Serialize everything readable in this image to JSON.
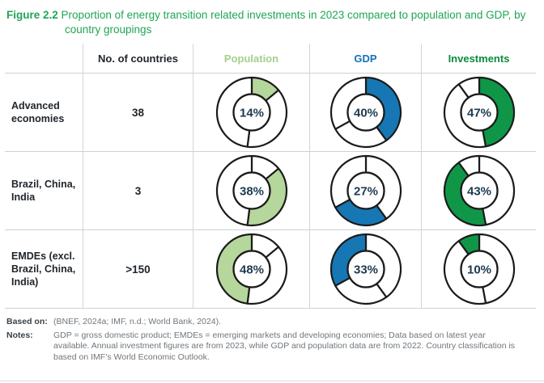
{
  "title": {
    "figure_label": "Figure 2.2",
    "text": "Proportion of energy transition related investments in 2023 compared to population and GDP, by country groupings"
  },
  "colors": {
    "title_green": "#1fa654",
    "stroke": "#1b1b1b",
    "pct_text": "#1e3a50",
    "fills": [
      "#b5d79c",
      "#1677b4",
      "#0f9747"
    ],
    "header_colors": [
      "#20262c",
      "#a3cf8b",
      "#1472b6",
      "#0d8a3e"
    ]
  },
  "table": {
    "col_headers": [
      "No. of countries",
      "Population",
      "GDP",
      "Investments"
    ],
    "rows": [
      {
        "label": "Advanced economies",
        "countries": "38",
        "population": "14%",
        "gdp": "40%",
        "investments": "47%"
      },
      {
        "label": "Brazil, China, India",
        "countries": "3",
        "population": "38%",
        "gdp": "27%",
        "investments": "43%"
      },
      {
        "label": "EMDEs (excl. Brazil, China, India)",
        "countries": ">150",
        "population": "48%",
        "gdp": "33%",
        "investments": "10%"
      }
    ]
  },
  "chart_data": [
    {
      "type": "pie",
      "title": "Population",
      "categories": [
        "Advanced economies",
        "Brazil, China, India",
        "EMDEs (excl. Brazil, China, India)"
      ],
      "values": [
        14,
        38,
        48
      ],
      "unit": "%",
      "style": "donut, single highlighted segment per row, others white with black outline"
    },
    {
      "type": "pie",
      "title": "GDP",
      "categories": [
        "Advanced economies",
        "Brazil, China, India",
        "EMDEs (excl. Brazil, China, India)"
      ],
      "values": [
        40,
        27,
        33
      ],
      "unit": "%",
      "style": "donut, single highlighted segment per row, others white with black outline"
    },
    {
      "type": "pie",
      "title": "Investments",
      "categories": [
        "Advanced economies",
        "Brazil, China, India",
        "EMDEs (excl. Brazil, China, India)"
      ],
      "values": [
        47,
        43,
        10
      ],
      "unit": "%",
      "style": "donut, single highlighted segment per row, others white with black outline"
    }
  ],
  "notes": {
    "based_on_label": "Based on:",
    "based_on_text": "(BNEF, 2024a; IMF, n.d.; World Bank, 2024).",
    "notes_label": "Notes:",
    "notes_text": "GDP = gross domestic product; EMDEs = emerging markets and developing economies; Data based on latest year available. Annual investment figures are from 2023, while GDP and population data are from 2022. Country classification is based on IMF’s World Economic Outlook."
  }
}
